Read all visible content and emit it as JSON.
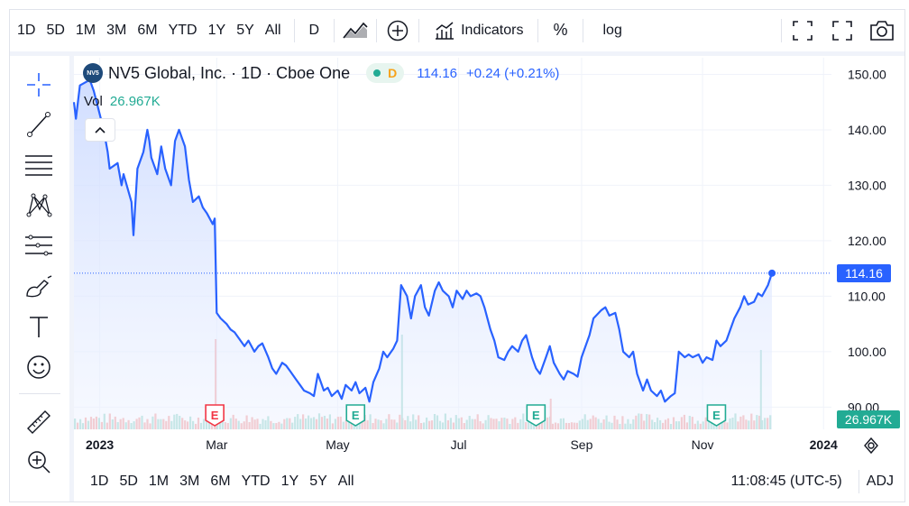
{
  "topbar": {
    "ranges": [
      "1D",
      "5D",
      "1M",
      "3M",
      "6M",
      "YTD",
      "1Y",
      "5Y",
      "All"
    ],
    "interval": "D",
    "indicators_label": "Indicators",
    "percent_label": "%",
    "log_label": "log"
  },
  "legend": {
    "symbol_logo": "NV5",
    "title": "NV5 Global, Inc. · 1D · Cboe One",
    "pill_letter": "D",
    "price_text": "114.16",
    "change_text": "+0.24 (+0.21%)",
    "vol_label": "Vol",
    "vol_value": "26.967K"
  },
  "price_axis": {
    "ticks": [
      "150.00",
      "140.00",
      "130.00",
      "120.00",
      "110.00",
      "100.00",
      "90.00"
    ],
    "last_price_label": "114.16",
    "last_volume_label": "26.967K"
  },
  "time_axis": {
    "ticks": [
      "2023",
      "Mar",
      "May",
      "Jul",
      "Sep",
      "Nov",
      "2024"
    ]
  },
  "bottombar": {
    "ranges": [
      "1D",
      "5D",
      "1M",
      "3M",
      "6M",
      "YTD",
      "1Y",
      "5Y",
      "All"
    ],
    "clock": "11:08:45 (UTC-5)",
    "adj_label": "ADJ"
  },
  "colors": {
    "line": "#2962ff",
    "area": "#dbe6ff",
    "up_volume": "#9fd9cf",
    "down_volume": "#f5a6a6",
    "earnings_up": "#22ab94",
    "earnings_down": "#f23645"
  },
  "chart_data": {
    "type": "line",
    "title": "NV5 Global, Inc. · 1D · Cboe One",
    "xlabel": "",
    "ylabel": "",
    "ylim": [
      86,
      153
    ],
    "x_range": [
      "2022-12-19",
      "2024-01-05"
    ],
    "grid": true,
    "series": [
      {
        "name": "NV5 Global, Inc.",
        "points": [
          [
            "2022-12-19",
            145.0
          ],
          [
            "2022-12-20",
            142.0
          ],
          [
            "2022-12-22",
            148.0
          ],
          [
            "2022-12-27",
            149.0
          ],
          [
            "2022-12-29",
            147.0
          ],
          [
            "2023-01-03",
            140.0
          ],
          [
            "2023-01-05",
            136.0
          ],
          [
            "2023-01-06",
            133.0
          ],
          [
            "2023-01-10",
            134.0
          ],
          [
            "2023-01-12",
            130.0
          ],
          [
            "2023-01-13",
            132.0
          ],
          [
            "2023-01-17",
            127.0
          ],
          [
            "2023-01-18",
            121.0
          ],
          [
            "2023-01-20",
            133.0
          ],
          [
            "2023-01-23",
            136.0
          ],
          [
            "2023-01-25",
            140.0
          ],
          [
            "2023-01-26",
            138.0
          ],
          [
            "2023-01-27",
            135.0
          ],
          [
            "2023-01-30",
            132.0
          ],
          [
            "2023-02-01",
            137.0
          ],
          [
            "2023-02-03",
            133.0
          ],
          [
            "2023-02-06",
            130.0
          ],
          [
            "2023-02-08",
            138.0
          ],
          [
            "2023-02-10",
            140.0
          ],
          [
            "2023-02-13",
            137.0
          ],
          [
            "2023-02-15",
            131.0
          ],
          [
            "2023-02-17",
            127.0
          ],
          [
            "2023-02-20",
            128.0
          ],
          [
            "2023-02-22",
            126.0
          ],
          [
            "2023-02-24",
            125.0
          ],
          [
            "2023-02-27",
            123.0
          ],
          [
            "2023-02-28",
            124.0
          ],
          [
            "2023-03-01",
            107.0
          ],
          [
            "2023-03-03",
            106.0
          ],
          [
            "2023-03-06",
            105.0
          ],
          [
            "2023-03-08",
            104.0
          ],
          [
            "2023-03-10",
            103.5
          ],
          [
            "2023-03-13",
            102.0
          ],
          [
            "2023-03-15",
            101.0
          ],
          [
            "2023-03-17",
            102.0
          ],
          [
            "2023-03-20",
            100.0
          ],
          [
            "2023-03-22",
            101.0
          ],
          [
            "2023-03-24",
            101.5
          ],
          [
            "2023-03-27",
            99.0
          ],
          [
            "2023-03-29",
            97.0
          ],
          [
            "2023-03-31",
            96.0
          ],
          [
            "2023-04-03",
            98.0
          ],
          [
            "2023-04-05",
            97.5
          ],
          [
            "2023-04-07",
            96.5
          ],
          [
            "2023-04-10",
            95.0
          ],
          [
            "2023-04-12",
            94.0
          ],
          [
            "2023-04-14",
            93.0
          ],
          [
            "2023-04-17",
            92.5
          ],
          [
            "2023-04-19",
            92.0
          ],
          [
            "2023-04-21",
            96.0
          ],
          [
            "2023-04-24",
            93.0
          ],
          [
            "2023-04-26",
            93.5
          ],
          [
            "2023-04-28",
            92.0
          ],
          [
            "2023-05-01",
            93.0
          ],
          [
            "2023-05-03",
            91.5
          ],
          [
            "2023-05-05",
            94.0
          ],
          [
            "2023-05-08",
            93.0
          ],
          [
            "2023-05-10",
            94.5
          ],
          [
            "2023-05-12",
            92.5
          ],
          [
            "2023-05-15",
            93.5
          ],
          [
            "2023-05-17",
            91.0
          ],
          [
            "2023-05-19",
            94.5
          ],
          [
            "2023-05-22",
            97.0
          ],
          [
            "2023-05-24",
            100.0
          ],
          [
            "2023-05-26",
            99.0
          ],
          [
            "2023-05-29",
            100.5
          ],
          [
            "2023-05-31",
            102.0
          ],
          [
            "2023-06-02",
            112.0
          ],
          [
            "2023-06-05",
            110.0
          ],
          [
            "2023-06-07",
            106.0
          ],
          [
            "2023-06-09",
            110.0
          ],
          [
            "2023-06-12",
            112.0
          ],
          [
            "2023-06-14",
            108.0
          ],
          [
            "2023-06-16",
            106.5
          ],
          [
            "2023-06-19",
            111.0
          ],
          [
            "2023-06-21",
            112.5
          ],
          [
            "2023-06-23",
            111.0
          ],
          [
            "2023-06-26",
            110.0
          ],
          [
            "2023-06-28",
            108.0
          ],
          [
            "2023-06-30",
            111.0
          ],
          [
            "2023-07-03",
            109.5
          ],
          [
            "2023-07-05",
            111.0
          ],
          [
            "2023-07-07",
            110.0
          ],
          [
            "2023-07-10",
            110.5
          ],
          [
            "2023-07-12",
            110.0
          ],
          [
            "2023-07-14",
            108.0
          ],
          [
            "2023-07-17",
            104.0
          ],
          [
            "2023-07-19",
            102.0
          ],
          [
            "2023-07-21",
            99.0
          ],
          [
            "2023-07-24",
            98.5
          ],
          [
            "2023-07-26",
            100.0
          ],
          [
            "2023-07-28",
            101.0
          ],
          [
            "2023-07-31",
            100.0
          ],
          [
            "2023-08-02",
            102.0
          ],
          [
            "2023-08-04",
            103.0
          ],
          [
            "2023-08-07",
            99.0
          ],
          [
            "2023-08-09",
            97.0
          ],
          [
            "2023-08-11",
            96.0
          ],
          [
            "2023-08-14",
            99.0
          ],
          [
            "2023-08-16",
            101.0
          ],
          [
            "2023-08-18",
            98.0
          ],
          [
            "2023-08-21",
            96.0
          ],
          [
            "2023-08-23",
            95.0
          ],
          [
            "2023-08-25",
            96.5
          ],
          [
            "2023-08-28",
            96.0
          ],
          [
            "2023-08-30",
            95.5
          ],
          [
            "2023-09-01",
            99.0
          ],
          [
            "2023-09-05",
            103.0
          ],
          [
            "2023-09-07",
            106.0
          ],
          [
            "2023-09-11",
            107.5
          ],
          [
            "2023-09-13",
            108.0
          ],
          [
            "2023-09-15",
            106.5
          ],
          [
            "2023-09-18",
            107.0
          ],
          [
            "2023-09-20",
            104.0
          ],
          [
            "2023-09-22",
            100.0
          ],
          [
            "2023-09-25",
            99.0
          ],
          [
            "2023-09-27",
            100.0
          ],
          [
            "2023-09-29",
            96.0
          ],
          [
            "2023-10-02",
            93.0
          ],
          [
            "2023-10-04",
            95.0
          ],
          [
            "2023-10-06",
            93.0
          ],
          [
            "2023-10-09",
            92.0
          ],
          [
            "2023-10-11",
            93.0
          ],
          [
            "2023-10-13",
            91.0
          ],
          [
            "2023-10-16",
            92.0
          ],
          [
            "2023-10-18",
            92.5
          ],
          [
            "2023-10-20",
            100.0
          ],
          [
            "2023-10-23",
            99.0
          ],
          [
            "2023-10-25",
            99.5
          ],
          [
            "2023-10-27",
            99.0
          ],
          [
            "2023-10-30",
            99.5
          ],
          [
            "2023-11-01",
            98.0
          ],
          [
            "2023-11-03",
            99.0
          ],
          [
            "2023-11-06",
            98.5
          ],
          [
            "2023-11-08",
            102.0
          ],
          [
            "2023-11-10",
            101.0
          ],
          [
            "2023-11-13",
            102.0
          ],
          [
            "2023-11-15",
            104.0
          ],
          [
            "2023-11-17",
            106.0
          ],
          [
            "2023-11-20",
            108.0
          ],
          [
            "2023-11-22",
            110.0
          ],
          [
            "2023-11-24",
            108.5
          ],
          [
            "2023-11-27",
            109.0
          ],
          [
            "2023-11-29",
            110.5
          ],
          [
            "2023-12-01",
            110.0
          ],
          [
            "2023-12-04",
            112.0
          ],
          [
            "2023-12-06",
            114.16
          ]
        ]
      }
    ],
    "volume_bars_count": 260,
    "earnings_markers": [
      {
        "date": "2023-02-28",
        "label": "E",
        "tone": "down"
      },
      {
        "date": "2023-05-10",
        "label": "E",
        "tone": "up"
      },
      {
        "date": "2023-08-09",
        "label": "E",
        "tone": "up"
      },
      {
        "date": "2023-11-08",
        "label": "E",
        "tone": "up"
      }
    ]
  }
}
